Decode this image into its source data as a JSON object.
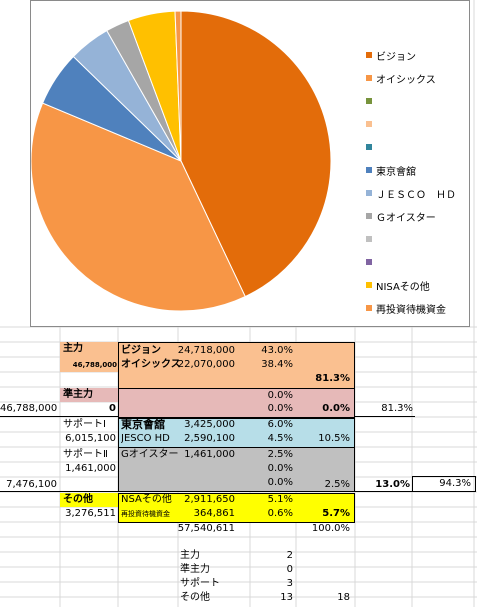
{
  "colors": {
    "orange_dark": "#e36c0a",
    "orange": "#f79646",
    "blue": "#4f81bd",
    "light_blue": "#95b3d7",
    "gray": "#a6a6a6",
    "gold": "#ffc000",
    "peach": "#fac090",
    "salmon": "#f79646",
    "pink": "#e6b9b8",
    "light_cyan": "#b7dee8",
    "silver": "#c0c0c0",
    "yellow": "#ffff00"
  },
  "chart_data": {
    "type": "pie",
    "slices": [
      {
        "name": "ビジョン",
        "value": 24718000,
        "color": "#e36c0a"
      },
      {
        "name": "オイシックス",
        "value": 22070000,
        "color": "#f79646"
      },
      {
        "name": "",
        "value": 0,
        "color": "#77933c"
      },
      {
        "name": "",
        "value": 0,
        "color": "#fac090"
      },
      {
        "name": "",
        "value": 0,
        "color": "#31859c"
      },
      {
        "name": "東京會舘",
        "value": 3425000,
        "color": "#4f81bd"
      },
      {
        "name": "ＪＥＳＣＯ　ＨＤ",
        "value": 2590100,
        "color": "#95b3d7"
      },
      {
        "name": "Ｇオイスター",
        "value": 1461000,
        "color": "#a6a6a6"
      },
      {
        "name": "",
        "value": 0,
        "color": "#c0c0c0"
      },
      {
        "name": "",
        "value": 0,
        "color": "#8064a2"
      },
      {
        "name": "NISAその他",
        "value": 2911650,
        "color": "#ffc000"
      },
      {
        "name": "再投資待機資金",
        "value": 364861,
        "color": "#f79646"
      }
    ]
  },
  "table": {
    "main": {
      "label": "主力",
      "total": "46,788,000"
    },
    "main_rows": [
      {
        "name": "ビジョン",
        "value": "24,718,000",
        "pct": "43.0%"
      },
      {
        "name": "オイシックス",
        "value": "22,070,000",
        "pct": "38.4%"
      }
    ],
    "main_sum_pct": "81.3%",
    "sub_main": {
      "label": "準主力",
      "left_total": "46,788,000",
      "count": "0"
    },
    "sub_main_rows": [
      "0.0%",
      "0.0%"
    ],
    "sub_main_sum": "0.0%",
    "cum_1": "81.3%",
    "support1": {
      "label": "サポートⅠ",
      "total": "6,015,100"
    },
    "support1_rows": [
      {
        "name": "東京會舘",
        "value": "3,425,000",
        "pct": "6.0%"
      },
      {
        "name": "JESCO HD",
        "value": "2,590,100",
        "pct": "4.5%"
      }
    ],
    "support1_sum": "10.5%",
    "support2": {
      "label": "サポートⅡ",
      "total": "1,461,000",
      "left_total": "7,476,100"
    },
    "support2_rows": [
      {
        "name": "Gオイスター",
        "value": "1,461,000",
        "pct": "2.5%"
      },
      {
        "name": "",
        "value": "",
        "pct": "0.0%"
      },
      {
        "name": "",
        "value": "",
        "pct": "0.0%"
      }
    ],
    "support2_sum": "2.5%",
    "support_total": "13.0%",
    "cum_2": "94.3%",
    "other": {
      "label": "その他",
      "total": "3,276,511"
    },
    "other_rows": [
      {
        "name": "NSAその他",
        "value": "2,911,650",
        "pct": "5.1%"
      },
      {
        "name": "再投資待機資金",
        "value": "364,861",
        "pct": "0.6%"
      }
    ],
    "other_sum": "5.7%",
    "grand_total": "57,540,611",
    "grand_pct": "100.0%"
  },
  "counts": [
    {
      "label": "主力",
      "value": "2",
      "extra": ""
    },
    {
      "label": "準主力",
      "value": "0",
      "extra": ""
    },
    {
      "label": "サポート",
      "value": "3",
      "extra": ""
    },
    {
      "label": "その他",
      "value": "13",
      "extra": "18"
    }
  ]
}
